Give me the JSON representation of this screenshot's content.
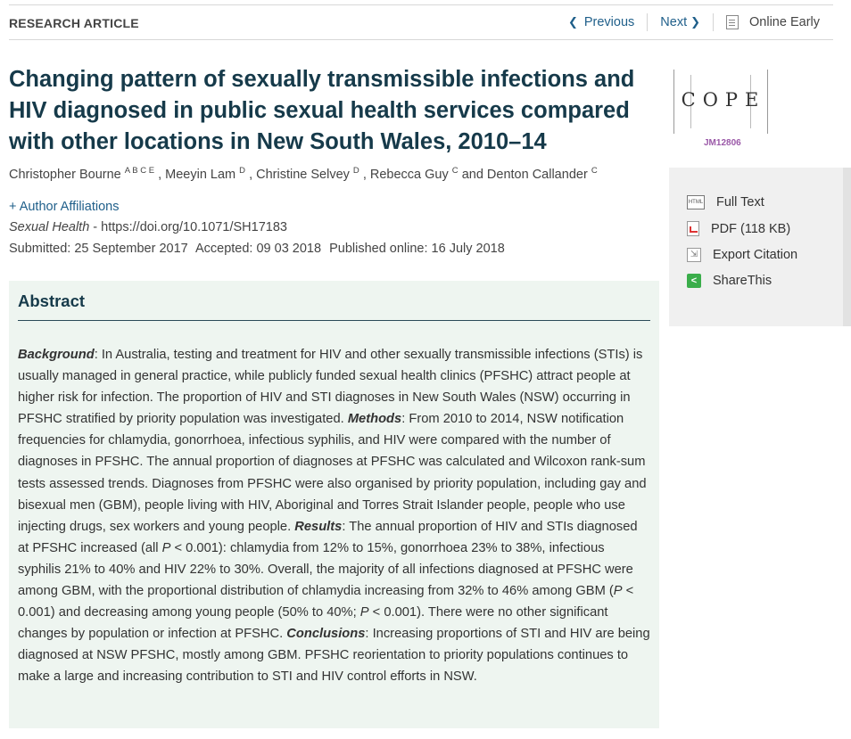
{
  "header": {
    "label": "RESEARCH ARTICLE",
    "prev_label": "Previous",
    "next_label": "Next",
    "online_label": "Online Early"
  },
  "title": "Changing pattern of sexually transmissible infections and HIV diagnosed in public sexual health services compared with other locations in New South Wales, 2010–14",
  "authors": [
    {
      "name": "Christopher Bourne",
      "sup": "A B C E",
      "after": ","
    },
    {
      "name": "Meeyin Lam",
      "sup": "D",
      "after": ","
    },
    {
      "name": "Christine Selvey",
      "sup": "D",
      "after": ","
    },
    {
      "name": "Rebecca Guy",
      "sup": "C",
      "after": "and"
    },
    {
      "name": "Denton Callander",
      "sup": "C",
      "after": ""
    }
  ],
  "affiliations_link": "+ Author Affiliations",
  "journal": {
    "name": "Sexual Health",
    "doi": " - https://doi.org/10.1071/SH17183"
  },
  "dates": {
    "submitted": "Submitted: 25 September 2017",
    "accepted": "Accepted: 09 03 2018",
    "published": "Published online: 16 July 2018"
  },
  "cope": {
    "letters": "COPE",
    "id": "JM12806"
  },
  "sidebar": {
    "full_text": "Full Text",
    "pdf": "PDF (118 KB)",
    "export": "Export Citation",
    "share": "ShareThis"
  },
  "abstract": {
    "heading": "Abstract",
    "background_label": "Background",
    "background_text": ": In Australia, testing and treatment for HIV and other sexually transmissible infections (STIs) is usually managed in general practice, while publicly funded sexual health clinics (PFSHC) attract people at higher risk for infection. The proportion of HIV and STI diagnoses in New South Wales (NSW) occurring in PFSHC stratified by priority population was investigated. ",
    "methods_label": "Methods",
    "methods_text": ": From 2010 to 2014, NSW notification frequencies for chlamydia, gonorrhoea, infectious syphilis, and HIV were compared with the number of diagnoses in PFSHC. The annual proportion of diagnoses at PFSHC was calculated and Wilcoxon rank-sum tests assessed trends. Diagnoses from PFSHC were also organised by priority population, including gay and bisexual men (GBM), people living with HIV, Aboriginal and Torres Strait Islander people, people who use injecting drugs, sex workers and young people. ",
    "results_label": "Results",
    "results_text_1": ": The annual proportion of HIV and STIs diagnosed at PFSHC increased (all ",
    "p_symbol": "P",
    "results_text_2": " < 0.001): chlamydia from 12% to 15%, gonorrhoea 23% to 38%, infectious syphilis 21% to 40% and HIV 22% to 30%. Overall, the majority of all infections diagnosed at PFSHC were among GBM, with the proportional distribution of chlamydia increasing from 32% to 46% among GBM (",
    "results_text_3": " < 0.001) and decreasing among young people (50% to 40%; ",
    "results_text_4": " < 0.001). There were no other significant changes by population or infection at PFSHC. ",
    "conclusions_label": "Conclusions",
    "conclusions_text": ": Increasing proportions of STI and HIV are being diagnosed at NSW PFSHC, mostly among GBM. PFSHC reorientation to priority populations continues to make a large and increasing contribution to STI and HIV control efforts in NSW."
  }
}
